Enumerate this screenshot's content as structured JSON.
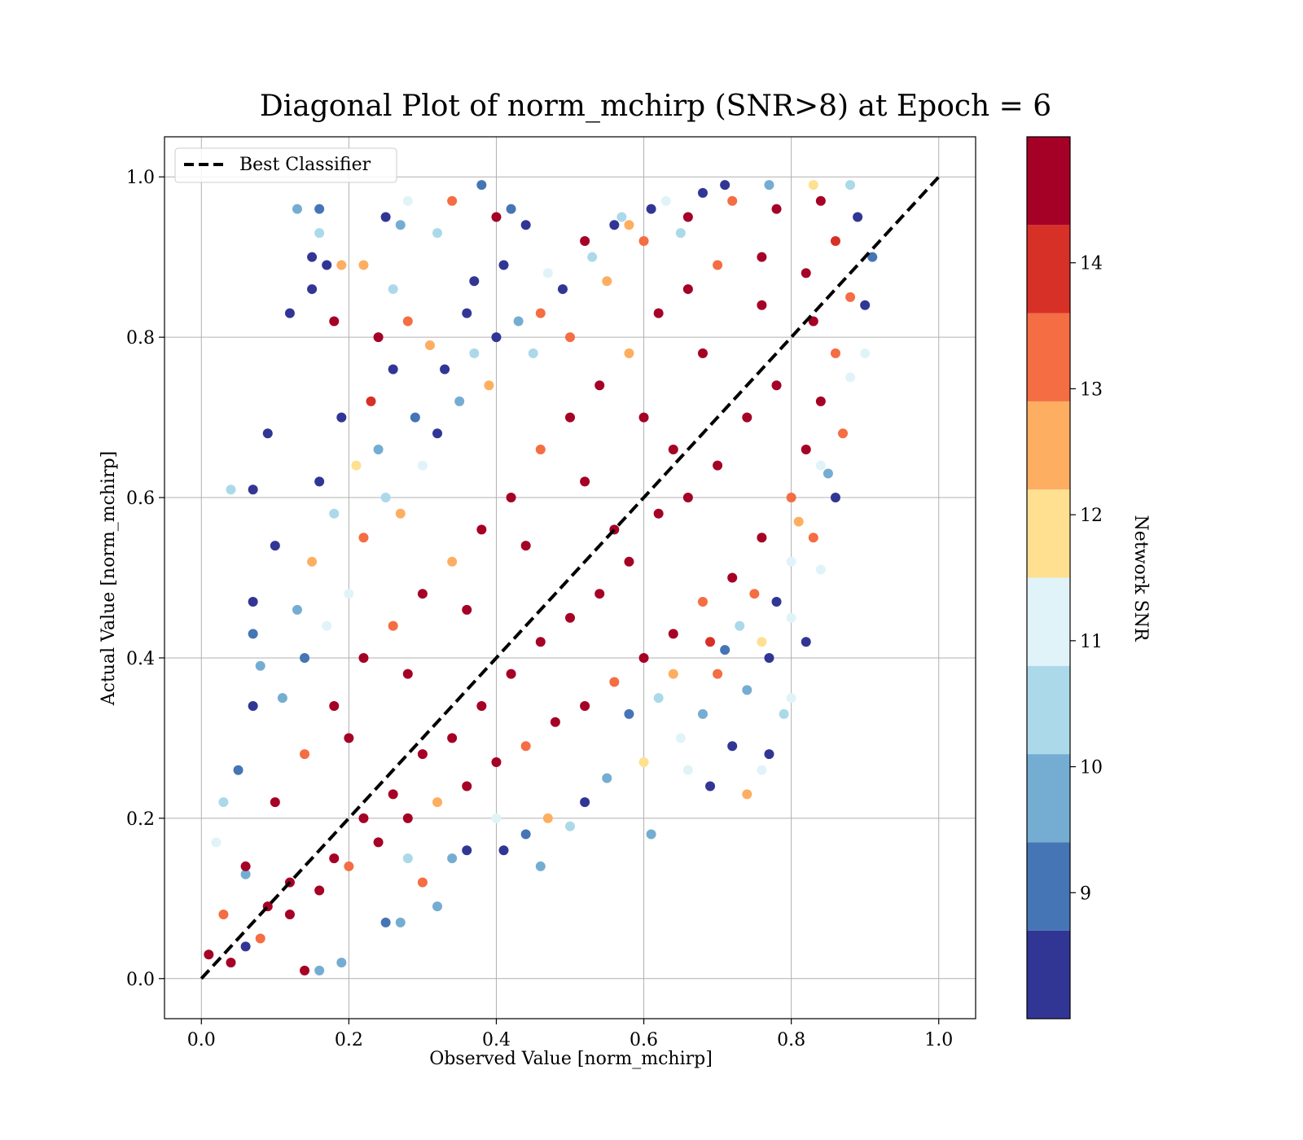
{
  "chart_data": {
    "type": "scatter",
    "title": "Diagonal Plot of norm_mchirp (SNR>8) at Epoch = 6",
    "xlabel": "Observed Value [norm_mchirp]",
    "ylabel": "Actual Value [norm_mchirp]",
    "xlim": [
      -0.05,
      1.05
    ],
    "ylim": [
      -0.05,
      1.05
    ],
    "x_ticks": [
      "0.0",
      "0.2",
      "0.4",
      "0.6",
      "0.8",
      "1.0"
    ],
    "y_ticks": [
      "0.0",
      "0.2",
      "0.4",
      "0.6",
      "0.8",
      "1.0"
    ],
    "grid": true,
    "legend": {
      "position": "upper-left",
      "entries": [
        "Best Classifier"
      ]
    },
    "reference_line": {
      "name": "Best Classifier",
      "x": [
        0.0,
        1.0
      ],
      "y": [
        0.0,
        1.0
      ],
      "style": "dashed",
      "color": "#000000"
    },
    "colorbar": {
      "label": "Network SNR",
      "ticks": [
        "9",
        "10",
        "11",
        "12",
        "13",
        "14"
      ],
      "range": [
        8.0,
        15.0
      ],
      "bands": [
        {
          "from": 8.0,
          "to": 8.7,
          "color": "#313695"
        },
        {
          "from": 8.7,
          "to": 9.4,
          "color": "#4575b4"
        },
        {
          "from": 9.4,
          "to": 10.1,
          "color": "#74add1"
        },
        {
          "from": 10.1,
          "to": 10.8,
          "color": "#abd9e9"
        },
        {
          "from": 10.8,
          "to": 11.5,
          "color": "#e0f3f8"
        },
        {
          "from": 11.5,
          "to": 12.2,
          "color": "#fee090"
        },
        {
          "from": 12.2,
          "to": 12.9,
          "color": "#fdae61"
        },
        {
          "from": 12.9,
          "to": 13.6,
          "color": "#f46d43"
        },
        {
          "from": 13.6,
          "to": 14.3,
          "color": "#d73027"
        },
        {
          "from": 14.3,
          "to": 15.0,
          "color": "#a50026"
        }
      ]
    },
    "series": [
      {
        "note_points": "representative sample of the dense scatter; color encodes Network SNR",
        "points": [
          [
            0.13,
            0.96,
            10.0
          ],
          [
            0.16,
            0.96,
            9.0
          ],
          [
            0.16,
            0.93,
            10.2
          ],
          [
            0.15,
            0.9,
            8.5
          ],
          [
            0.17,
            0.89,
            8.5
          ],
          [
            0.19,
            0.89,
            12.5
          ],
          [
            0.22,
            0.89,
            12.5
          ],
          [
            0.25,
            0.95,
            8.5
          ],
          [
            0.27,
            0.94,
            10.0
          ],
          [
            0.28,
            0.97,
            11.0
          ],
          [
            0.34,
            0.97,
            13.0
          ],
          [
            0.38,
            0.99,
            9.0
          ],
          [
            0.4,
            0.95,
            14.5
          ],
          [
            0.42,
            0.96,
            9.0
          ],
          [
            0.44,
            0.94,
            8.5
          ],
          [
            0.41,
            0.89,
            8.5
          ],
          [
            0.37,
            0.87,
            8.5
          ],
          [
            0.32,
            0.93,
            10.2
          ],
          [
            0.12,
            0.83,
            8.5
          ],
          [
            0.15,
            0.86,
            8.5
          ],
          [
            0.18,
            0.82,
            14.5
          ],
          [
            0.24,
            0.8,
            14.5
          ],
          [
            0.26,
            0.86,
            10.2
          ],
          [
            0.28,
            0.82,
            13.5
          ],
          [
            0.31,
            0.79,
            12.5
          ],
          [
            0.36,
            0.83,
            8.5
          ],
          [
            0.09,
            0.68,
            8.5
          ],
          [
            0.04,
            0.61,
            10.2
          ],
          [
            0.07,
            0.61,
            8.5
          ],
          [
            0.1,
            0.54,
            8.5
          ],
          [
            0.07,
            0.47,
            8.5
          ],
          [
            0.07,
            0.43,
            9.0
          ],
          [
            0.08,
            0.39,
            9.5
          ],
          [
            0.07,
            0.34,
            8.5
          ],
          [
            0.05,
            0.26,
            9.0
          ],
          [
            0.03,
            0.22,
            10.2
          ],
          [
            0.02,
            0.17,
            11.0
          ],
          [
            0.06,
            0.13,
            9.5
          ],
          [
            0.06,
            0.04,
            8.5
          ],
          [
            0.14,
            0.01,
            14.5
          ],
          [
            0.16,
            0.01,
            10.0
          ],
          [
            0.19,
            0.02,
            9.5
          ],
          [
            0.25,
            0.07,
            9.0
          ],
          [
            0.27,
            0.07,
            9.5
          ],
          [
            0.32,
            0.09,
            9.5
          ],
          [
            0.46,
            0.14,
            9.5
          ],
          [
            0.41,
            0.16,
            8.5
          ],
          [
            0.61,
            0.18,
            9.5
          ],
          [
            0.69,
            0.24,
            8.5
          ],
          [
            0.74,
            0.23,
            12.5
          ],
          [
            0.76,
            0.26,
            11.0
          ],
          [
            0.77,
            0.28,
            8.5
          ],
          [
            0.79,
            0.33,
            10.2
          ],
          [
            0.8,
            0.35,
            11.0
          ],
          [
            0.82,
            0.42,
            8.5
          ],
          [
            0.8,
            0.45,
            11.0
          ],
          [
            0.84,
            0.51,
            11.0
          ],
          [
            0.83,
            0.55,
            13.5
          ],
          [
            0.86,
            0.6,
            8.5
          ],
          [
            0.85,
            0.63,
            9.5
          ],
          [
            0.87,
            0.68,
            13.0
          ],
          [
            0.88,
            0.75,
            10.8
          ],
          [
            0.9,
            0.78,
            11.0
          ],
          [
            0.88,
            0.85,
            13.5
          ],
          [
            0.9,
            0.84,
            8.5
          ],
          [
            0.91,
            0.9,
            9.0
          ],
          [
            0.89,
            0.95,
            8.5
          ],
          [
            0.88,
            0.99,
            10.2
          ],
          [
            0.83,
            0.99,
            12.0
          ],
          [
            0.77,
            0.99,
            9.5
          ],
          [
            0.71,
            0.99,
            8.5
          ],
          [
            0.68,
            0.98,
            8.5
          ],
          [
            0.57,
            0.95,
            10.2
          ],
          [
            0.56,
            0.94,
            8.5
          ],
          [
            0.63,
            0.97,
            11.0
          ],
          [
            0.52,
            0.92,
            14.5
          ],
          [
            0.49,
            0.86,
            8.5
          ],
          [
            0.46,
            0.83,
            13.5
          ],
          [
            0.45,
            0.78,
            10.2
          ],
          [
            0.5,
            0.8,
            13.0
          ],
          [
            0.55,
            0.87,
            12.2
          ],
          [
            0.6,
            0.92,
            13.5
          ],
          [
            0.66,
            0.95,
            14.5
          ],
          [
            0.72,
            0.97,
            13.0
          ],
          [
            0.78,
            0.96,
            14.5
          ],
          [
            0.84,
            0.97,
            14.5
          ],
          [
            0.86,
            0.92,
            13.8
          ],
          [
            0.82,
            0.88,
            14.5
          ],
          [
            0.76,
            0.9,
            14.5
          ],
          [
            0.7,
            0.89,
            13.5
          ],
          [
            0.66,
            0.86,
            14.5
          ],
          [
            0.62,
            0.83,
            14.5
          ],
          [
            0.58,
            0.78,
            12.5
          ],
          [
            0.54,
            0.74,
            14.5
          ],
          [
            0.5,
            0.7,
            14.5
          ],
          [
            0.46,
            0.66,
            13.0
          ],
          [
            0.42,
            0.6,
            14.5
          ],
          [
            0.38,
            0.56,
            14.5
          ],
          [
            0.34,
            0.52,
            12.2
          ],
          [
            0.3,
            0.48,
            14.5
          ],
          [
            0.26,
            0.44,
            13.5
          ],
          [
            0.22,
            0.4,
            14.5
          ],
          [
            0.18,
            0.34,
            14.5
          ],
          [
            0.14,
            0.28,
            13.0
          ],
          [
            0.1,
            0.22,
            14.5
          ],
          [
            0.06,
            0.14,
            14.5
          ],
          [
            0.03,
            0.08,
            13.5
          ],
          [
            0.01,
            0.03,
            14.5
          ],
          [
            0.04,
            0.02,
            14.5
          ],
          [
            0.08,
            0.05,
            13.0
          ],
          [
            0.12,
            0.08,
            14.5
          ],
          [
            0.16,
            0.11,
            14.5
          ],
          [
            0.2,
            0.14,
            13.5
          ],
          [
            0.24,
            0.17,
            14.5
          ],
          [
            0.28,
            0.2,
            14.5
          ],
          [
            0.32,
            0.22,
            12.5
          ],
          [
            0.36,
            0.24,
            14.5
          ],
          [
            0.4,
            0.27,
            14.5
          ],
          [
            0.44,
            0.29,
            13.5
          ],
          [
            0.48,
            0.32,
            14.5
          ],
          [
            0.52,
            0.34,
            14.5
          ],
          [
            0.56,
            0.37,
            13.0
          ],
          [
            0.6,
            0.4,
            14.5
          ],
          [
            0.64,
            0.43,
            14.5
          ],
          [
            0.68,
            0.47,
            13.5
          ],
          [
            0.72,
            0.5,
            14.5
          ],
          [
            0.76,
            0.55,
            14.5
          ],
          [
            0.8,
            0.6,
            13.5
          ],
          [
            0.82,
            0.66,
            14.5
          ],
          [
            0.84,
            0.72,
            14.5
          ],
          [
            0.86,
            0.78,
            13.5
          ],
          [
            0.83,
            0.82,
            14.5
          ],
          [
            0.74,
            0.7,
            14.5
          ],
          [
            0.66,
            0.6,
            14.5
          ],
          [
            0.58,
            0.52,
            14.5
          ],
          [
            0.5,
            0.45,
            14.5
          ],
          [
            0.42,
            0.38,
            14.5
          ],
          [
            0.34,
            0.3,
            14.5
          ],
          [
            0.26,
            0.23,
            14.5
          ],
          [
            0.18,
            0.15,
            14.5
          ],
          [
            0.2,
            0.3,
            14.5
          ],
          [
            0.28,
            0.38,
            14.5
          ],
          [
            0.36,
            0.46,
            14.5
          ],
          [
            0.44,
            0.54,
            14.5
          ],
          [
            0.52,
            0.62,
            14.5
          ],
          [
            0.6,
            0.7,
            14.5
          ],
          [
            0.68,
            0.78,
            14.5
          ],
          [
            0.76,
            0.84,
            14.5
          ],
          [
            0.3,
            0.28,
            14.5
          ],
          [
            0.46,
            0.42,
            14.5
          ],
          [
            0.62,
            0.58,
            14.5
          ],
          [
            0.78,
            0.74,
            14.5
          ],
          [
            0.7,
            0.64,
            14.5
          ],
          [
            0.54,
            0.48,
            14.5
          ],
          [
            0.38,
            0.34,
            14.5
          ],
          [
            0.22,
            0.2,
            14.5
          ],
          [
            0.12,
            0.12,
            14.5
          ],
          [
            0.09,
            0.09,
            14.5
          ],
          [
            0.56,
            0.56,
            14.5
          ],
          [
            0.64,
            0.66,
            14.5
          ],
          [
            0.15,
            0.52,
            12.5
          ],
          [
            0.18,
            0.58,
            10.2
          ],
          [
            0.13,
            0.46,
            9.5
          ],
          [
            0.16,
            0.62,
            8.5
          ],
          [
            0.2,
            0.48,
            11.0
          ],
          [
            0.22,
            0.55,
            13.0
          ],
          [
            0.14,
            0.4,
            9.0
          ],
          [
            0.17,
            0.44,
            10.8
          ],
          [
            0.11,
            0.35,
            9.5
          ],
          [
            0.19,
            0.7,
            8.5
          ],
          [
            0.21,
            0.64,
            12.0
          ],
          [
            0.24,
            0.66,
            9.5
          ],
          [
            0.25,
            0.6,
            10.2
          ],
          [
            0.23,
            0.72,
            14.0
          ],
          [
            0.26,
            0.76,
            8.5
          ],
          [
            0.29,
            0.7,
            9.0
          ],
          [
            0.3,
            0.64,
            11.0
          ],
          [
            0.27,
            0.58,
            12.5
          ],
          [
            0.32,
            0.68,
            8.5
          ],
          [
            0.35,
            0.72,
            9.5
          ],
          [
            0.37,
            0.78,
            10.2
          ],
          [
            0.33,
            0.76,
            8.5
          ],
          [
            0.39,
            0.74,
            12.2
          ],
          [
            0.4,
            0.8,
            8.5
          ],
          [
            0.43,
            0.82,
            9.5
          ],
          [
            0.47,
            0.88,
            11.0
          ],
          [
            0.53,
            0.9,
            10.2
          ],
          [
            0.58,
            0.94,
            12.5
          ],
          [
            0.61,
            0.96,
            8.5
          ],
          [
            0.65,
            0.93,
            10.2
          ],
          [
            0.58,
            0.33,
            9.0
          ],
          [
            0.62,
            0.35,
            10.2
          ],
          [
            0.65,
            0.3,
            11.0
          ],
          [
            0.68,
            0.33,
            9.5
          ],
          [
            0.7,
            0.38,
            13.0
          ],
          [
            0.72,
            0.29,
            8.5
          ],
          [
            0.66,
            0.26,
            10.8
          ],
          [
            0.6,
            0.27,
            12.0
          ],
          [
            0.55,
            0.25,
            9.5
          ],
          [
            0.52,
            0.22,
            8.5
          ],
          [
            0.5,
            0.19,
            10.2
          ],
          [
            0.47,
            0.2,
            12.5
          ],
          [
            0.44,
            0.18,
            9.0
          ],
          [
            0.4,
            0.2,
            11.0
          ],
          [
            0.36,
            0.16,
            8.5
          ],
          [
            0.34,
            0.15,
            9.5
          ],
          [
            0.3,
            0.12,
            13.0
          ],
          [
            0.28,
            0.15,
            10.2
          ],
          [
            0.74,
            0.36,
            9.5
          ],
          [
            0.76,
            0.42,
            12.0
          ],
          [
            0.78,
            0.47,
            8.5
          ],
          [
            0.73,
            0.44,
            10.2
          ],
          [
            0.8,
            0.52,
            11.0
          ],
          [
            0.75,
            0.48,
            13.5
          ],
          [
            0.71,
            0.41,
            9.0
          ],
          [
            0.64,
            0.38,
            12.2
          ],
          [
            0.69,
            0.42,
            14.0
          ],
          [
            0.77,
            0.4,
            8.5
          ],
          [
            0.81,
            0.57,
            12.5
          ],
          [
            0.84,
            0.64,
            10.8
          ]
        ]
      }
    ]
  }
}
